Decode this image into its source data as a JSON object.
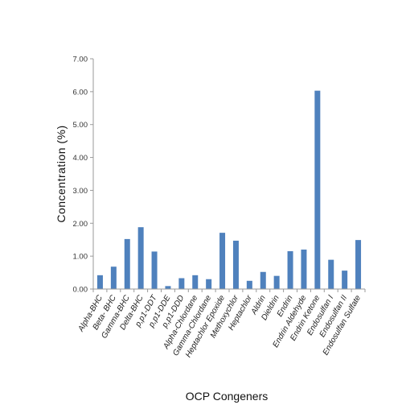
{
  "chart_data": {
    "type": "bar",
    "categories": [
      "Alpha-BHC",
      "Beta- BHC",
      "Gamma-BHC",
      "Delta-BHC",
      "p,p1-DDT",
      "p,p1-DDE",
      "p,p1-DDD",
      "Alpha-Chlordane",
      "Gamma-Chlordane",
      "Heptachlor Epoxide",
      "Methoxychlor",
      "Heptachlor",
      "Aldrin",
      "Dieldrin",
      "Endrin",
      "Endrin Aldehyde",
      "Endrin Ketone",
      "Endosulfan I",
      "Endosulfan II",
      "Endosulfan Sulfate"
    ],
    "values": [
      0.42,
      0.68,
      1.52,
      1.88,
      1.14,
      0.09,
      0.33,
      0.42,
      0.3,
      1.71,
      1.47,
      0.25,
      0.52,
      0.4,
      1.15,
      1.2,
      6.03,
      0.89,
      0.56,
      1.49
    ],
    "ylabel": "Concentration (%)",
    "xlabel": "OCP Congeners",
    "ylim": [
      0,
      7
    ],
    "yticks": [
      "0.00",
      "1.00",
      "2.00",
      "3.00",
      "4.00",
      "5.00",
      "6.00",
      "7.00"
    ],
    "grid": false,
    "legend": "none",
    "bar_color": "#4f81bd"
  }
}
